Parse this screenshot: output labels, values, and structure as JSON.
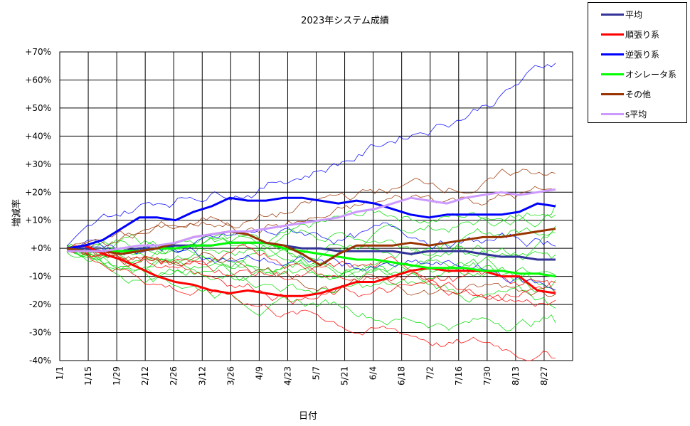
{
  "chart_data": {
    "type": "line",
    "title": "2023年システム成績",
    "xlabel": "日付",
    "ylabel": "増減率",
    "x_ticks": [
      "1/1",
      "1/15",
      "1/29",
      "2/12",
      "2/26",
      "3/12",
      "3/26",
      "4/9",
      "4/23",
      "5/7",
      "5/21",
      "6/4",
      "6/18",
      "7/2",
      "7/16",
      "7/30",
      "8/13",
      "8/27"
    ],
    "y_ticks": [
      "+70%",
      "+60%",
      "+50%",
      "+40%",
      "+30%",
      "+20%",
      "+10%",
      "+0%",
      "-10%",
      "-20%",
      "-30%",
      "-40%"
    ],
    "ylim": [
      -40,
      70
    ],
    "grid": true,
    "legend_position": "top-right outside",
    "series": [
      {
        "name": "平均",
        "color": "#333399",
        "values": [
          0,
          0,
          -1,
          -1,
          0,
          0,
          1,
          1,
          1,
          2,
          2,
          2,
          1,
          0,
          0,
          -1,
          -1,
          -1,
          -1,
          -2,
          -1,
          -1,
          -1,
          -2,
          -3,
          -3,
          -4,
          -4
        ]
      },
      {
        "name": "順張り系",
        "color": "#ff0000",
        "values": [
          0,
          1,
          -2,
          -4,
          -7,
          -10,
          -12,
          -13,
          -15,
          -16,
          -15,
          -16,
          -17,
          -17,
          -16,
          -14,
          -12,
          -12,
          -10,
          -8,
          -7,
          -8,
          -8,
          -8,
          -10,
          -10,
          -15,
          -16
        ]
      },
      {
        "name": "逆張り系",
        "color": "#0000ff",
        "values": [
          0,
          1,
          3,
          7,
          11,
          11,
          10,
          13,
          15,
          18,
          17,
          17,
          18,
          18,
          17,
          16,
          17,
          16,
          14,
          12,
          11,
          12,
          12,
          12,
          12,
          13,
          16,
          15
        ]
      },
      {
        "name": "オシレータ系",
        "color": "#00ff00",
        "values": [
          0,
          -1,
          -1,
          -1,
          -1,
          0,
          0,
          1,
          1,
          2,
          2,
          2,
          0,
          -1,
          -2,
          -3,
          -4,
          -4,
          -5,
          -6,
          -7,
          -7,
          -7,
          -8,
          -8,
          -9,
          -9,
          -10
        ]
      },
      {
        "name": "その他",
        "color": "#993300",
        "values": [
          0,
          -1,
          -1,
          -2,
          -1,
          0,
          2,
          4,
          5,
          6,
          5,
          2,
          1,
          -2,
          -6,
          -2,
          1,
          1,
          1,
          2,
          1,
          2,
          3,
          4,
          4,
          5,
          6,
          7
        ]
      },
      {
        "name": "s平均",
        "color": "#cc99ff",
        "values": [
          -1,
          -1,
          -1,
          0,
          1,
          1,
          2,
          4,
          5,
          6,
          6,
          7,
          8,
          9,
          10,
          11,
          13,
          14,
          16,
          18,
          17,
          16,
          18,
          19,
          20,
          19,
          20,
          21
        ]
      }
    ]
  }
}
